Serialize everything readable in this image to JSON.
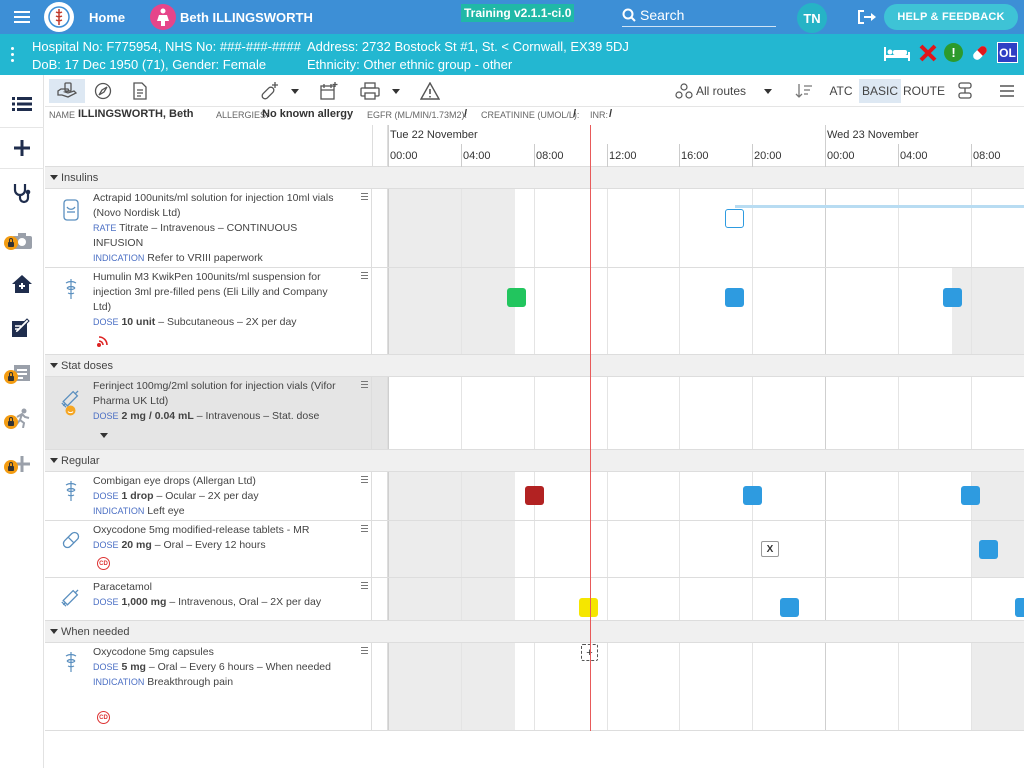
{
  "topbar": {
    "home_label": "Home",
    "patient_name": "Beth ILLINGSWORTH",
    "training_badge": "Training v2.1.1-ci.0",
    "search_placeholder": "Search",
    "user_initials": "TN",
    "help_label": "HELP & FEEDBACK"
  },
  "banner": {
    "line1": "Hospital No: F775954, NHS No: ###-###-####",
    "address": "Address: 2732 Bostock St #1, St. < Cornwall, EX39 5DJ",
    "line2": "DoB: 17 Dec 1950 (71), Gender: Female",
    "ethnicity": "Ethnicity: Other ethnic group - other",
    "ol_badge": "OL",
    "info_badge": "!"
  },
  "toolbar": {
    "routes_label": "All routes",
    "atc_label": "ATC",
    "basic_label": "BASIC",
    "route_label": "ROUTE"
  },
  "infobar": {
    "name_label": "NAME",
    "name_value": "ILLINGSWORTH, Beth",
    "allergies_label": "ALLERGIES:",
    "allergies_value": "No known allergy",
    "egfr_label": "EGFR (ML/MIN/1.73M2):",
    "egfr_value": "/",
    "creat_label": "CREATININE (UMOL/L):",
    "creat_value": "/",
    "inr_label": "INR:",
    "inr_value": "/"
  },
  "timeline": {
    "day1": "Tue 22 November",
    "day2": "Wed 23 November",
    "hours": [
      "00:00",
      "04:00",
      "08:00",
      "12:00",
      "16:00",
      "20:00",
      "00:00",
      "04:00",
      "08:00"
    ]
  },
  "sections": {
    "insulins": "Insulins",
    "stat": "Stat doses",
    "regular": "Regular",
    "when_needed": "When needed"
  },
  "meds": [
    {
      "name": "Actrapid 100units/ml solution for injection 10ml vials (Novo Nordisk Ltd)",
      "l1": "RATE",
      "v1": "Titrate – Intravenous – CONTINUOUS INFUSION",
      "l2": "INDICATION",
      "v2": "Refer to VRIII paperwork"
    },
    {
      "name": "Humulin M3 KwikPen 100units/ml suspension for injection 3ml pre-filled pens (Eli Lilly and Company Ltd)",
      "l1": "DOSE",
      "v1b": "10 unit",
      "v1": "– Subcutaneous – 2X per day"
    },
    {
      "name": "Ferinject 100mg/2ml solution for injection vials (Vifor Pharma UK Ltd)",
      "l1": "DOSE",
      "v1b": "2 mg / 0.04 mL",
      "v1": "– Intravenous – Stat. dose"
    },
    {
      "name": "Combigan eye drops (Allergan Ltd)",
      "l1": "DOSE",
      "v1b": "1 drop",
      "v1": "– Ocular – 2X per day",
      "l2": "INDICATION",
      "v2": "Left eye"
    },
    {
      "name": "Oxycodone 5mg modified-release tablets - MR",
      "l1": "DOSE",
      "v1b": "20 mg",
      "v1": "– Oral – Every 12 hours"
    },
    {
      "name": "Paracetamol",
      "l1": "DOSE",
      "v1b": "1,000 mg",
      "v1": "– Intravenous, Oral – 2X per day"
    },
    {
      "name": "Oxycodone 5mg capsules",
      "l1": "DOSE",
      "v1b": "5 mg",
      "v1": "– Oral – Every 6 hours – When needed",
      "l2": "INDICATION",
      "v2": "Breakthrough pain"
    }
  ],
  "marks": {
    "missed": "X",
    "prn": "+",
    "cd": "CD"
  },
  "colors": {
    "given": "#2e9be0",
    "early": "#22c55e",
    "refused": "#b22222",
    "due": "#f5e600",
    "now_line": "#e85a5a"
  }
}
